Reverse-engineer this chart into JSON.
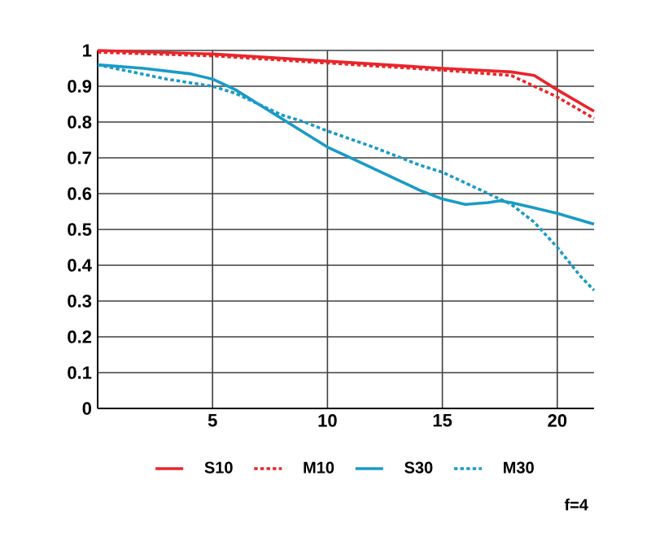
{
  "chart_data": {
    "type": "line",
    "xlim": [
      0,
      21.6
    ],
    "ylim": [
      0,
      1
    ],
    "xticks": [
      5,
      10,
      15,
      20
    ],
    "yticks": [
      0,
      0.1,
      0.2,
      0.3,
      0.4,
      0.5,
      0.6,
      0.7,
      0.8,
      0.9,
      1
    ],
    "grid": true,
    "legend": "bottom",
    "marker": "none",
    "annotations": [
      "f=4"
    ],
    "series": [
      {
        "name": "S10",
        "color": "#e8262b",
        "line_style": "solid",
        "x": [
          0,
          5,
          10,
          15,
          18,
          19,
          20,
          21.6
        ],
        "values": [
          1.0,
          0.99,
          0.97,
          0.95,
          0.94,
          0.93,
          0.89,
          0.83
        ]
      },
      {
        "name": "M10",
        "color": "#e8262b",
        "line_style": "dotted",
        "x": [
          0,
          5,
          10,
          15,
          18,
          20,
          21.6
        ],
        "values": [
          0.995,
          0.985,
          0.965,
          0.945,
          0.93,
          0.87,
          0.81
        ]
      },
      {
        "name": "S30",
        "color": "#1a9bc7",
        "line_style": "solid",
        "x": [
          0,
          2,
          4,
          5,
          6,
          7,
          8,
          9,
          10,
          11,
          12,
          13,
          14,
          15,
          16,
          17,
          17.5,
          18,
          19,
          20,
          21.6
        ],
        "values": [
          0.96,
          0.95,
          0.935,
          0.92,
          0.89,
          0.85,
          0.81,
          0.77,
          0.73,
          0.7,
          0.67,
          0.64,
          0.61,
          0.585,
          0.57,
          0.575,
          0.58,
          0.575,
          0.56,
          0.545,
          0.515
        ]
      },
      {
        "name": "M30",
        "color": "#1a9bc7",
        "line_style": "dotted",
        "x": [
          0,
          3,
          5,
          6,
          7,
          8,
          9,
          10,
          12,
          14,
          15,
          16,
          17,
          18,
          19,
          20,
          21,
          21.6
        ],
        "values": [
          0.96,
          0.92,
          0.9,
          0.88,
          0.85,
          0.82,
          0.8,
          0.775,
          0.73,
          0.68,
          0.66,
          0.63,
          0.6,
          0.57,
          0.52,
          0.45,
          0.37,
          0.33
        ]
      }
    ]
  }
}
